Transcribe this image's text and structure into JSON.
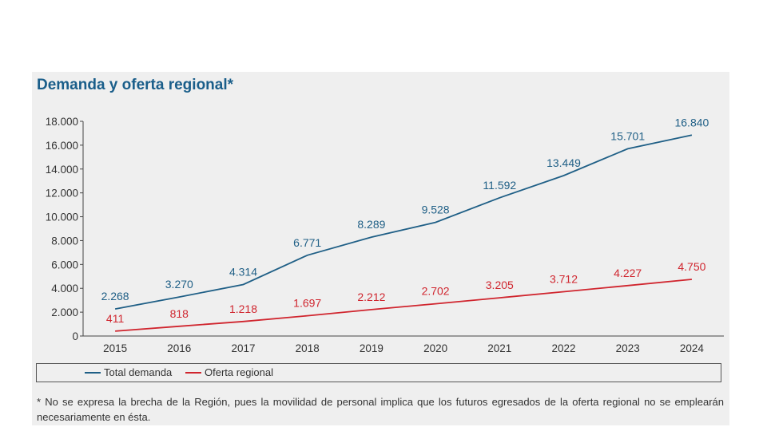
{
  "title": "Demanda y oferta regional*",
  "footnote": "* No se expresa la brecha de la Región, pues la movilidad de personal implica que los futuros egresados de la oferta regional no se emplearán necesariamente en ésta.",
  "colors": {
    "demanda": "#1f5f86",
    "oferta": "#d0252e",
    "title": "#1a5e8a"
  },
  "chart_data": {
    "type": "line",
    "x": [
      "2015",
      "2016",
      "2017",
      "2018",
      "2019",
      "2020",
      "2021",
      "2022",
      "2023",
      "2024"
    ],
    "y_ticks": [
      "0",
      "2.000",
      "4.000",
      "6.000",
      "8.000",
      "10.000",
      "12.000",
      "14.000",
      "16.000",
      "18.000"
    ],
    "ylim": [
      0,
      18000
    ],
    "grid": false,
    "legend_position": "bottom",
    "series": [
      {
        "name": "Total demanda",
        "color": "#1f5f86",
        "values": [
          2268,
          3270,
          4314,
          6771,
          8289,
          9528,
          11592,
          13449,
          15701,
          16840
        ],
        "labels": [
          "2.268",
          "3.270",
          "4.314",
          "6.771",
          "8.289",
          "9.528",
          "11.592",
          "13.449",
          "15.701",
          "16.840"
        ]
      },
      {
        "name": "Oferta regional",
        "color": "#d0252e",
        "values": [
          411,
          818,
          1218,
          1697,
          2212,
          2702,
          3205,
          3712,
          4227,
          4750
        ],
        "labels": [
          "411",
          "818",
          "1.218",
          "1.697",
          "2.212",
          "2.702",
          "3.205",
          "3.712",
          "4.227",
          "4.750"
        ]
      }
    ]
  }
}
